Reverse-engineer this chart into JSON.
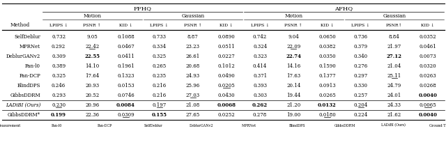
{
  "title_ffhq": "FFHQ",
  "title_afhq": "AFHQ",
  "col_method": "Method",
  "subgroup_motion": "Motion",
  "subgroup_gaussian": "Gaussian",
  "col_headers": [
    "LPIPS ↓",
    "PSNR ↑",
    "KID ↓",
    "LPIPS ↓",
    "PSNR ↑",
    "KID ↓",
    "LPIPS ↓",
    "PSNR ↑",
    "KID ↓",
    "LPIPS ↓",
    "PSNR↑",
    "KID ↓"
  ],
  "rows": [
    {
      "method": "SelfDeblur",
      "vals": [
        "0.732",
        "9.05",
        "0.1088",
        "0.733",
        "8.87",
        "0.0890",
        "0.742",
        "9.04",
        "0.0650",
        "0.736",
        "8.84",
        "0.0352"
      ],
      "bold": [],
      "underline": [],
      "italic": false,
      "star": false
    },
    {
      "method": "MPRNet",
      "vals": [
        "0.292",
        "22.42",
        "0.0467",
        "0.334",
        "23.23",
        "0.0511",
        "0.324",
        "22.09",
        "0.0382",
        "0.379",
        "21.97",
        "0.0461"
      ],
      "bold": [],
      "underline": [
        1,
        7
      ],
      "italic": false,
      "star": false
    },
    {
      "method": "DeblurGANv2",
      "vals": [
        "0.309",
        "22.55",
        "0.0411",
        "0.325",
        "26.61",
        "0.0227",
        "0.323",
        "22.74",
        "0.0350",
        "0.340",
        "27.12",
        "0.0073"
      ],
      "bold": [
        1,
        7,
        10
      ],
      "underline": [],
      "italic": false,
      "star": false
    },
    {
      "method": "Pan-l0",
      "vals": [
        "0.389",
        "14.10",
        "0.1961",
        "0.265",
        "20.68",
        "0.1012",
        "0.414",
        "14.16",
        "0.1590",
        "0.276",
        "21.04",
        "0.0320"
      ],
      "bold": [],
      "underline": [],
      "italic": false,
      "star": false
    },
    {
      "method": "Pan-DCP",
      "vals": [
        "0.325",
        "17.64",
        "0.1323",
        "0.235",
        "24.93",
        "0.0490",
        "0.371",
        "17.63",
        "0.1377",
        "0.297",
        "25.11",
        "0.0263"
      ],
      "bold": [],
      "underline": [
        10
      ],
      "italic": false,
      "star": false
    },
    {
      "method": "BlindDPS",
      "vals": [
        "0.246",
        "20.93",
        "0.0153",
        "0.216",
        "25.96",
        "0.0205",
        "0.393",
        "20.14",
        "0.0913",
        "0.330",
        "24.79",
        "0.0268"
      ],
      "bold": [],
      "underline": [
        5
      ],
      "italic": false,
      "star": false
    },
    {
      "method": "GibbsDDRM",
      "vals": [
        "0.293",
        "20.52",
        "0.0746",
        "0.216",
        "27.03",
        "0.0430",
        "0.303",
        "19.44",
        "0.0265",
        "0.257",
        "24.01",
        "0.0040"
      ],
      "bold": [
        11
      ],
      "underline": [
        4
      ],
      "italic": false,
      "star": false
    },
    {
      "method": "LADiBI (Ours)",
      "vals": [
        "0.230",
        "20.96",
        "0.0084",
        "0.197",
        "21.08",
        "0.0068",
        "0.262",
        "21.20",
        "0.0132",
        "0.204",
        "24.33",
        "0.0065"
      ],
      "bold": [
        2,
        5,
        6,
        8
      ],
      "underline": [
        0,
        3,
        9,
        11
      ],
      "italic": true,
      "star": false
    },
    {
      "method": "GibbsDDRM*",
      "vals": [
        "0.199",
        "22.36",
        "0.0309",
        "0.155",
        "27.65",
        "0.0252",
        "0.278",
        "19.00",
        "0.0180",
        "0.224",
        "21.62",
        "0.0040"
      ],
      "bold": [
        0,
        3,
        11
      ],
      "underline": [
        2,
        8
      ],
      "italic": false,
      "star": true
    }
  ],
  "footnote": [
    "Measurement",
    "Pan-l0",
    "Pan-DCP",
    "SelfDeblur",
    "DeblurGANv2",
    "MPRNet",
    "BlindDPS",
    "GibbsDDRM",
    "LADiBI (Ours)",
    "Ground Truth"
  ],
  "background_color": "#ffffff",
  "fontsize_data": 5.0,
  "fontsize_header": 5.2,
  "fontsize_title": 6.0,
  "fontsize_footnote": 3.5
}
